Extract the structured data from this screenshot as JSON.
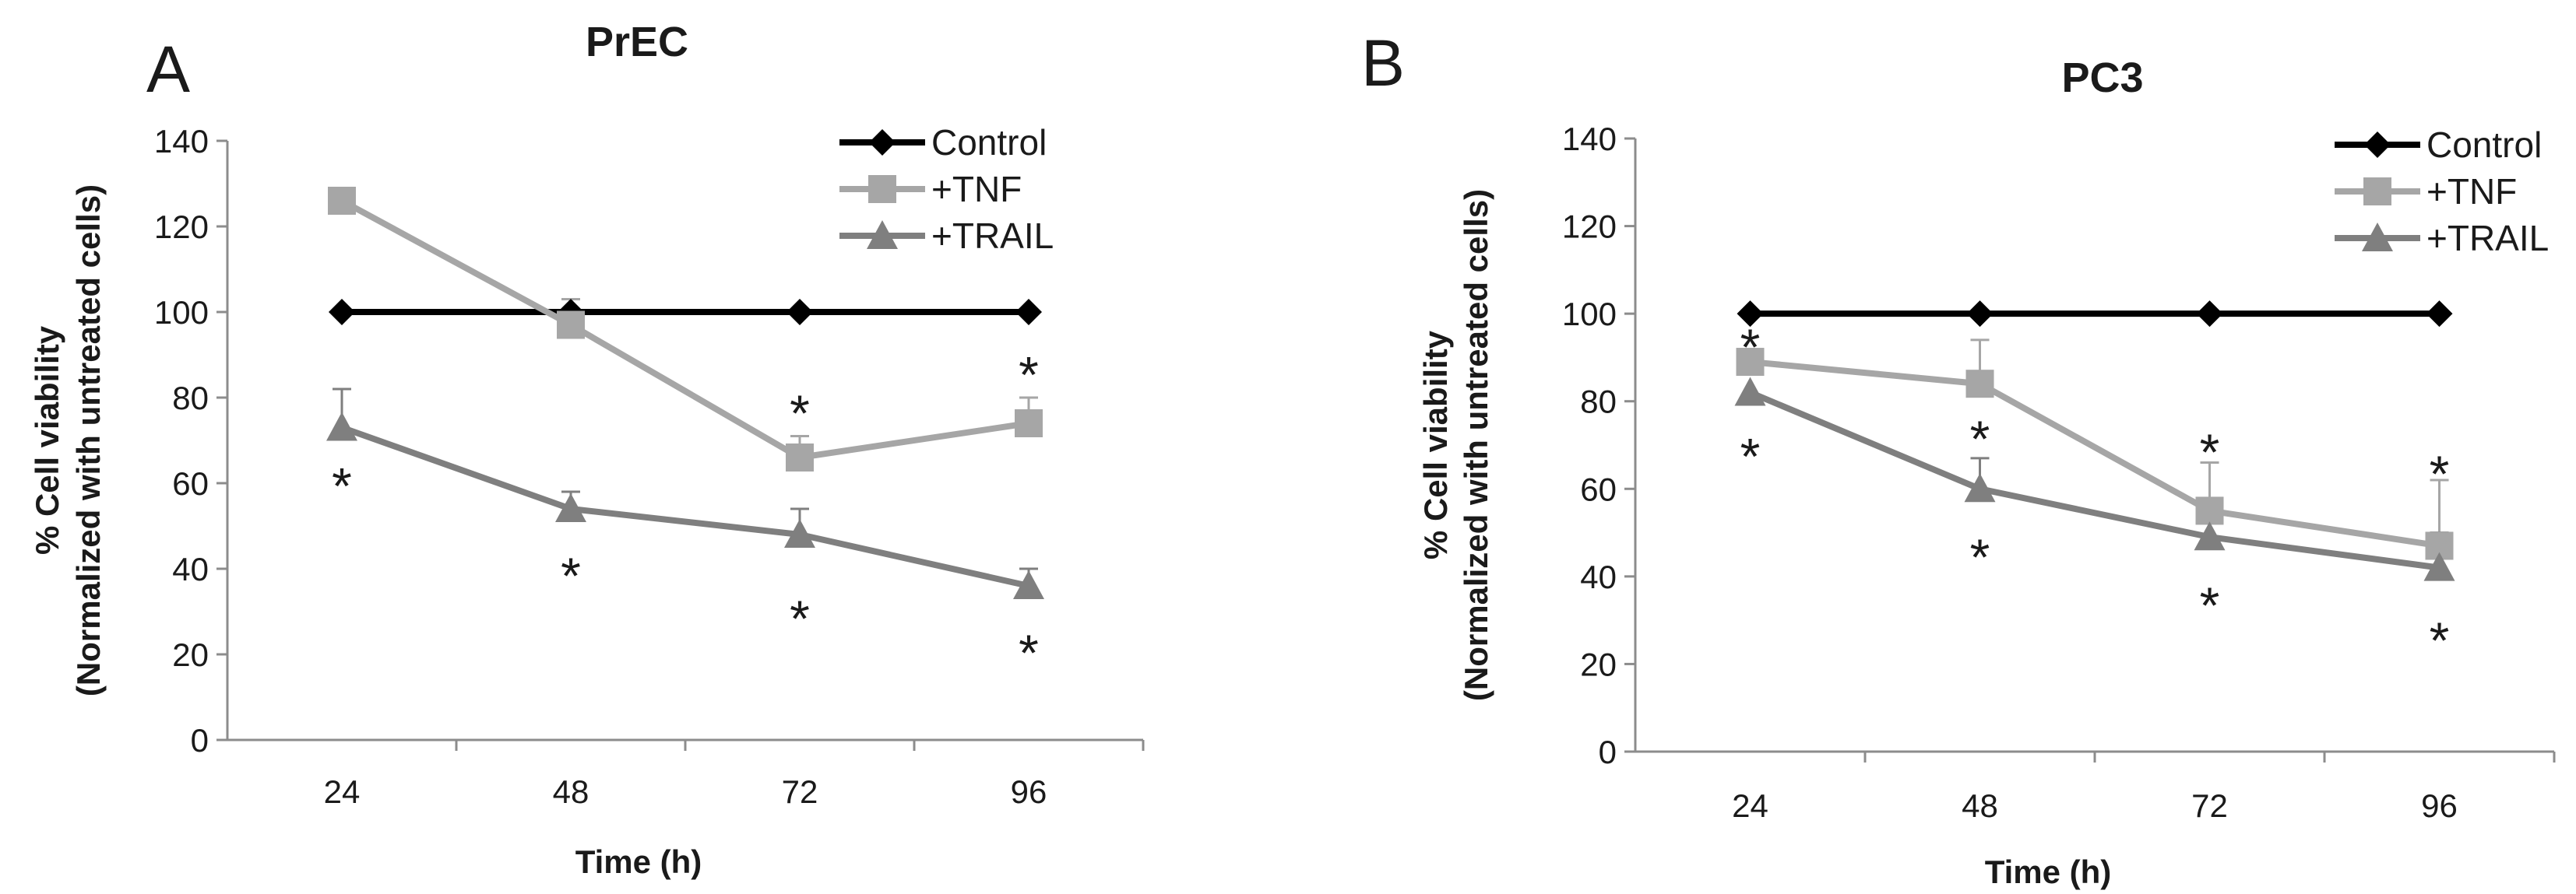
{
  "chart_data": [
    {
      "panel_label": "A",
      "type": "line",
      "title": "PrEC",
      "xlabel": "Time (h)",
      "ylabel": "% Cell viability",
      "ylabel2": "(Normalized with untreated cells)",
      "categories": [
        "24",
        "48",
        "72",
        "96"
      ],
      "ylim": [
        0,
        140
      ],
      "yticks": [
        "0",
        "20",
        "40",
        "60",
        "80",
        "100",
        "120",
        "140"
      ],
      "legend_position": "top-right",
      "series": [
        {
          "name": "Control",
          "marker": "diamond",
          "color": "#000000",
          "values": [
            100,
            100,
            100,
            100
          ],
          "errors": [
            0,
            0,
            0,
            0
          ]
        },
        {
          "name": "+TNF",
          "marker": "square",
          "color": "#a6a6a6",
          "values": [
            126,
            97,
            66,
            74
          ],
          "errors": [
            0,
            6,
            5,
            6
          ]
        },
        {
          "name": "+TRAIL",
          "marker": "triangle",
          "color": "#7f7f7f",
          "values": [
            73,
            54,
            48,
            36
          ],
          "errors": [
            9,
            4,
            6,
            4
          ]
        }
      ],
      "annotations": [
        {
          "text": "*",
          "category": "24",
          "value": 61
        },
        {
          "text": "*",
          "category": "48",
          "value": 40
        },
        {
          "text": "*",
          "category": "72",
          "value": 78
        },
        {
          "text": "*",
          "category": "72",
          "value": 30
        },
        {
          "text": "*",
          "category": "96",
          "value": 87
        },
        {
          "text": "*",
          "category": "96",
          "value": 22
        }
      ]
    },
    {
      "panel_label": "B",
      "type": "line",
      "title": "PC3",
      "xlabel": "Time (h)",
      "ylabel": "% Cell viability",
      "ylabel2": "(Normalized with untreated cells)",
      "categories": [
        "24",
        "48",
        "72",
        "96"
      ],
      "ylim": [
        0,
        140
      ],
      "yticks": [
        "0",
        "20",
        "40",
        "60",
        "80",
        "100",
        "120",
        "140"
      ],
      "legend_position": "top-right",
      "series": [
        {
          "name": "Control",
          "marker": "diamond",
          "color": "#000000",
          "values": [
            100,
            100,
            100,
            100
          ],
          "errors": [
            0,
            0,
            0,
            0
          ]
        },
        {
          "name": "+TNF",
          "marker": "square",
          "color": "#a6a6a6",
          "values": [
            89,
            84,
            55,
            47
          ],
          "errors": [
            0,
            10,
            11,
            15
          ]
        },
        {
          "name": "+TRAIL",
          "marker": "triangle",
          "color": "#7f7f7f",
          "values": [
            82,
            60,
            49,
            42
          ],
          "errors": [
            0,
            7,
            0,
            8
          ]
        }
      ],
      "annotations": [
        {
          "text": "*",
          "category": "24",
          "value": 94
        },
        {
          "text": "*",
          "category": "24",
          "value": 69
        },
        {
          "text": "*",
          "category": "48",
          "value": 73
        },
        {
          "text": "*",
          "category": "48",
          "value": 46
        },
        {
          "text": "*",
          "category": "72",
          "value": 70
        },
        {
          "text": "*",
          "category": "72",
          "value": 35
        },
        {
          "text": "*",
          "category": "96",
          "value": 65
        },
        {
          "text": "*",
          "category": "96",
          "value": 27
        }
      ]
    }
  ]
}
